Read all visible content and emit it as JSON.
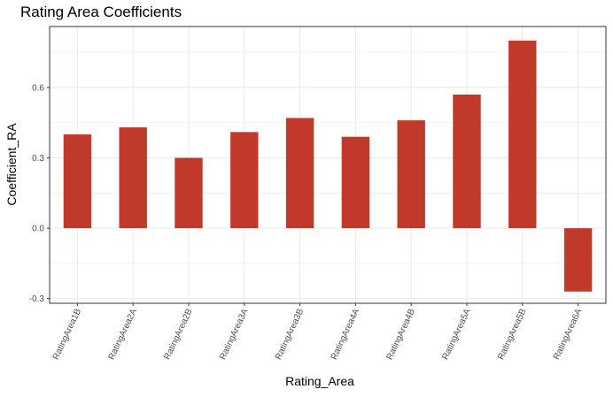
{
  "chart_data": {
    "type": "bar",
    "title": "Rating Area Coefficients",
    "xlabel": "Rating_Area",
    "ylabel": "Coefficient_RA",
    "categories": [
      "RatingArea1B",
      "RatingArea2A",
      "RatingArea2B",
      "RatingArea3A",
      "RatingArea3B",
      "RatingArea4A",
      "RatingArea4B",
      "RatingArea5A",
      "RatingArea5B",
      "RatingArea6A"
    ],
    "values": [
      0.4,
      0.43,
      0.3,
      0.41,
      0.47,
      0.39,
      0.46,
      0.57,
      0.8,
      -0.27
    ],
    "ylim": [
      -0.32,
      0.86
    ],
    "yticks": [
      -0.3,
      0.0,
      0.3,
      0.6
    ],
    "ytick_labels": [
      "-0.3",
      "0.0",
      "0.3",
      "0.6"
    ],
    "bar_color": "#c0392b",
    "grid": true,
    "background": "#ffffff",
    "gridline_color": "#ebebeb",
    "panel_border_color": "#333333"
  }
}
